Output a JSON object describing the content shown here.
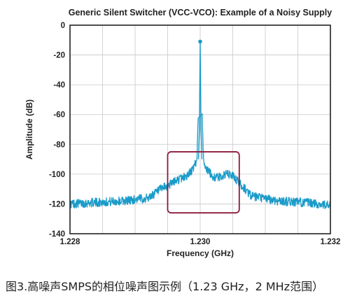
{
  "chart_data": {
    "type": "line",
    "title": "Generic Silent Switcher (VCC-VCO): Example of a Noisy Supply",
    "xlabel": "Frequency (GHz)",
    "ylabel": "Amplitude (dB)",
    "xlim": [
      1.228,
      1.232
    ],
    "ylim": [
      -140,
      0
    ],
    "x_ticks": [
      "1.228",
      "1.230",
      "1.232"
    ],
    "y_ticks": [
      "0",
      "-20",
      "-40",
      "-60",
      "-80",
      "-100",
      "-120",
      "-140"
    ],
    "grid": true,
    "series": [
      {
        "color": "#1a9bc9",
        "x": [
          1.228,
          1.2284,
          1.2288,
          1.2292,
          1.2294,
          1.2295,
          1.2296,
          1.2297,
          1.2298,
          1.2299,
          1.22995,
          1.23,
          1.23005,
          1.2301,
          1.2302,
          1.2303,
          1.2304,
          1.2305,
          1.2306,
          1.2308,
          1.2312,
          1.2316,
          1.232
        ],
        "y": [
          -120,
          -119,
          -118,
          -116,
          -110,
          -108,
          -105,
          -103,
          -101,
          -96,
          -90,
          -11,
          -90,
          -97,
          -102,
          -102,
          -100,
          -101,
          -106,
          -115,
          -118,
          -119,
          -121
        ],
        "noise_db": 3
      }
    ],
    "markers": [
      {
        "x": 1.23,
        "y": -11
      }
    ],
    "annotation_box": {
      "x": [
        1.2295,
        1.2306
      ],
      "y": [
        -126,
        -85
      ],
      "color": "#8b1a3a"
    }
  },
  "caption": "图3.高噪声SMPS的相位噪声图示例（1.23 GHz，2 MHz范围）"
}
